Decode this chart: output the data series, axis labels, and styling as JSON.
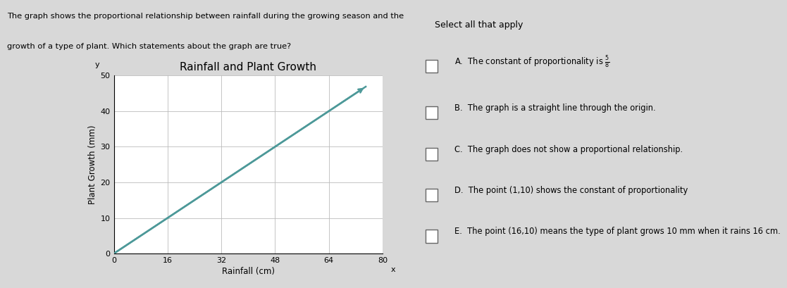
{
  "title": "Rainfall and Plant Growth",
  "xlabel": "Rainfall (cm)",
  "ylabel": "Plant Growth (mm)",
  "xlim": [
    0,
    80
  ],
  "ylim": [
    0,
    50
  ],
  "xticks": [
    0,
    16,
    32,
    48,
    64,
    80
  ],
  "yticks": [
    0,
    10,
    20,
    30,
    40,
    50
  ],
  "line_x": [
    0,
    75
  ],
  "line_y": [
    0,
    46.875
  ],
  "line_color": "#4d9999",
  "line_width": 1.8,
  "grid_color": "#bbbbbb",
  "page_background": "#d8d8d8",
  "chart_background": "#ffffff",
  "right_panel_background": "#d0d0d0",
  "title_fontsize": 11,
  "axis_label_fontsize": 8.5,
  "tick_fontsize": 8,
  "question_text_line1": "The graph shows the proportional relationship between rainfall during the growing season and the",
  "question_text_line2": "growth of a type of plant. Which statements about the graph are true?",
  "select_text": "Select all that apply",
  "option_A_pre": "A.  The constant of proportionality is ",
  "option_B": "B.  The graph is a straight line through the origin.",
  "option_C": "C.  The graph does not show a proportional relationship.",
  "option_D": "D.  The point (1,10) shows the constant of proportionality",
  "option_E": "E.  The point (16,10) means the type of plant grows 10 mm when it rains 16 cm.",
  "fraction_numerator": "5",
  "fraction_denominator": "8"
}
